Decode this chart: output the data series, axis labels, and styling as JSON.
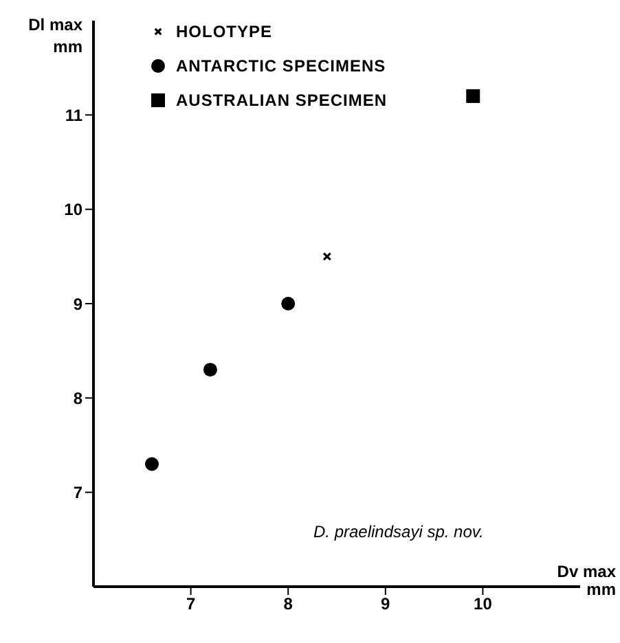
{
  "chart_data": {
    "type": "scatter",
    "xlabel": "Dv max mm",
    "ylabel": "Dl max mm",
    "xlim": [
      6,
      11
    ],
    "xticks": [
      7,
      8,
      9,
      10
    ],
    "ylim": [
      6,
      12
    ],
    "yticks": [
      7,
      8,
      9,
      10,
      11
    ],
    "grid": false,
    "legend": "top left",
    "annotations": [
      "D. praelindsayi sp. nov."
    ],
    "series": [
      {
        "name": "HOLOTYPE",
        "color": "#000000",
        "marker": "cross",
        "x": [
          8.4
        ],
        "values": [
          9.5
        ]
      },
      {
        "name": "ANTARCTIC SPECIMENS",
        "color": "#000000",
        "marker": "circle",
        "x": [
          6.6,
          7.2,
          8.0
        ],
        "values": [
          7.3,
          8.3,
          9.0
        ]
      },
      {
        "name": "AUSTRALIAN SPECIMEN",
        "color": "#000000",
        "marker": "square",
        "x": [
          9.9
        ],
        "values": [
          11.2
        ]
      }
    ]
  }
}
